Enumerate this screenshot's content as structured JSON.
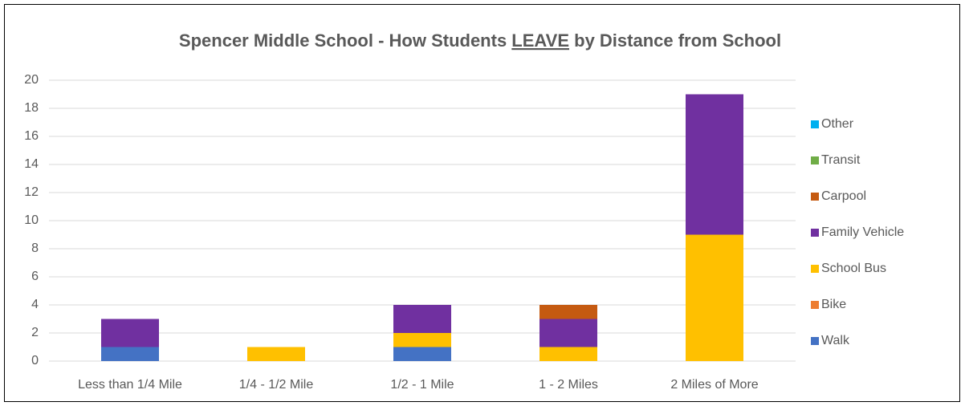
{
  "chart_data": {
    "type": "stacked_bar",
    "title": [
      "Spencer Middle School - How Students ",
      "LEAVE",
      " by Distance from School"
    ],
    "categories": [
      "Less than 1/4 Mile",
      "1/4 - 1/2 Mile",
      "1/2 - 1 Mile",
      "1 - 2 Miles",
      "2 Miles of More"
    ],
    "series": [
      {
        "name": "Walk",
        "color": "#4472c4",
        "values": [
          1,
          0,
          1,
          0,
          0
        ]
      },
      {
        "name": "Bike",
        "color": "#ed7d31",
        "values": [
          0,
          0,
          0,
          0,
          0
        ]
      },
      {
        "name": "School Bus",
        "color": "#ffc000",
        "values": [
          0,
          1,
          1,
          1,
          9
        ]
      },
      {
        "name": "Family Vehicle",
        "color": "#7030a0",
        "values": [
          2,
          0,
          2,
          2,
          10
        ]
      },
      {
        "name": "Carpool",
        "color": "#c55a11",
        "values": [
          0,
          0,
          0,
          1,
          0
        ]
      },
      {
        "name": "Transit",
        "color": "#70ad47",
        "values": [
          0,
          0,
          0,
          0,
          0
        ]
      },
      {
        "name": "Other",
        "color": "#00b0f0",
        "values": [
          0,
          0,
          0,
          0,
          0
        ]
      }
    ],
    "ylim": [
      0,
      20
    ],
    "yticks": [
      0,
      2,
      4,
      6,
      8,
      10,
      12,
      14,
      16,
      18,
      20
    ],
    "grid": true,
    "legend": "right"
  }
}
